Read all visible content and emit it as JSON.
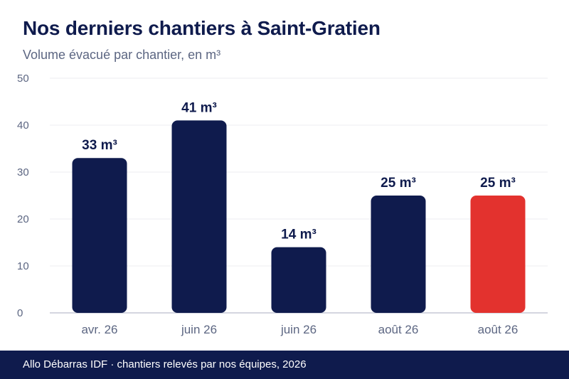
{
  "header": {
    "title": "Nos derniers chantiers à Saint-Gratien",
    "subtitle": "Volume évacué par chantier, en m³"
  },
  "chart_data": {
    "type": "bar",
    "categories": [
      "avr. 26",
      "juin 26",
      "juin 26",
      "août 26",
      "août 26"
    ],
    "values": [
      33,
      41,
      14,
      25,
      25
    ],
    "value_labels": [
      "33 m³",
      "41 m³",
      "14 m³",
      "25 m³",
      "25 m³"
    ],
    "ylim": [
      0,
      50
    ],
    "yticks": [
      0,
      10,
      20,
      30,
      40,
      50
    ],
    "grid": true,
    "colors": {
      "bar": "#0f1b4d",
      "highlight": "#e3322e",
      "grid": "#ececf0",
      "axis": "#c5c8d6",
      "tick_label": "#5c6682",
      "value_label": "#0f1b4d"
    },
    "highlight_index": 4
  },
  "footer": {
    "text": "Allo Débarras IDF · chantiers relevés par nos équipes, 2026"
  }
}
